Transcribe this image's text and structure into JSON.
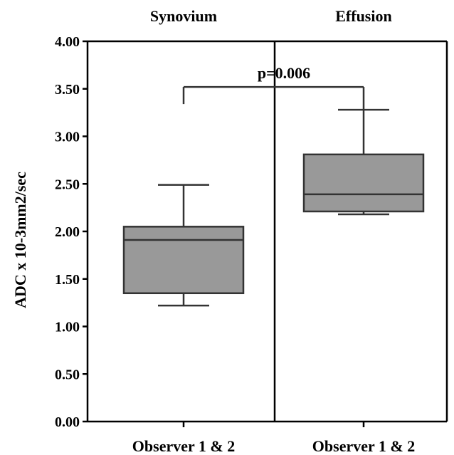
{
  "chart_data": {
    "type": "box",
    "ylabel": "ADC x 10-3mm2/sec",
    "ylim": [
      0,
      4
    ],
    "yticks": [
      "0.00",
      "0.50",
      "1.00",
      "1.50",
      "2.00",
      "2.50",
      "3.00",
      "3.50",
      "4.00"
    ],
    "grid": false,
    "panels": [
      {
        "title": "Synovium",
        "category": "Observer 1 & 2",
        "box": {
          "min": 1.22,
          "q1": 1.35,
          "median": 1.91,
          "q3": 2.05,
          "max": 2.49
        },
        "fill": "#999999"
      },
      {
        "title": "Effusion",
        "category": "Observer 1 & 2",
        "box": {
          "min": 2.18,
          "q1": 2.21,
          "median": 2.39,
          "q3": 2.81,
          "max": 3.28
        },
        "fill": "#999999"
      }
    ],
    "annotation": {
      "text": "p=0.006",
      "y": 3.52,
      "left_drop_to": 3.34,
      "right_drop_to": 3.28
    }
  }
}
